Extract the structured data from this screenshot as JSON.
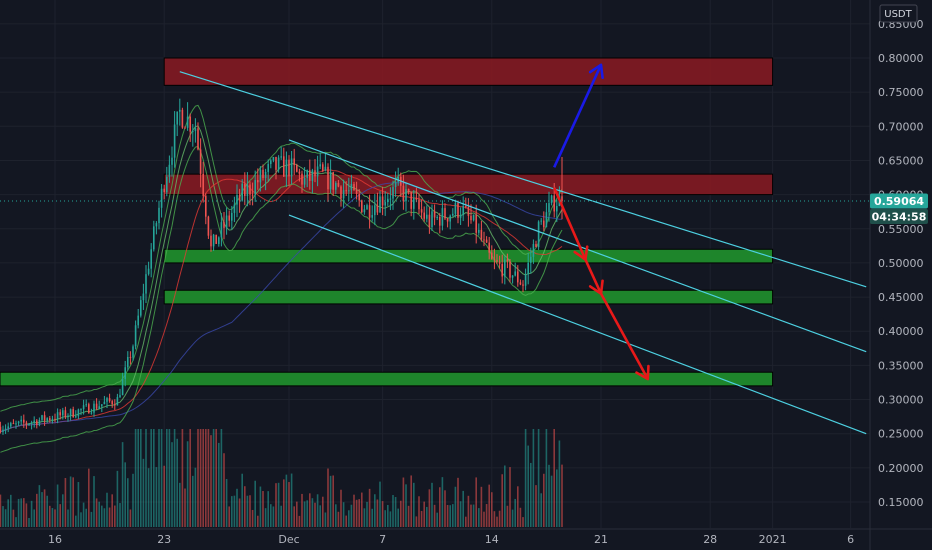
{
  "currency_label": "USDT",
  "colors": {
    "background": "#131722",
    "grid": "#1e222d",
    "up_candle": "#26a69a",
    "down_candle": "#ef5350",
    "channel": "#4dd0e1",
    "resistance_zone": "#8b1a22",
    "support_zone": "#1f8b2c",
    "bullish_arrow": "#1a1ae6",
    "bearish_arrow": "#e81919",
    "price_tag": "#26a69a"
  },
  "current_price": {
    "value": "0.59064",
    "countdown": "04:34:58"
  },
  "chart_data": {
    "type": "candlestick",
    "title": "",
    "xlabel": "",
    "ylabel": "",
    "ylim": [
      0.1,
      0.85
    ],
    "y_ticks": [
      "0.15000",
      "0.20000",
      "0.25000",
      "0.30000",
      "0.35000",
      "0.40000",
      "0.45000",
      "0.50000",
      "0.55000",
      "0.60000",
      "0.65000",
      "0.70000",
      "0.75000",
      "0.80000",
      "0.85000"
    ],
    "x_tick_labels": [
      "16",
      "23",
      "Dec",
      "7",
      "14",
      "21",
      "28",
      "2021",
      "6"
    ],
    "candle_interval": "4h",
    "key_price_path": [
      {
        "date": "2020-11-13",
        "close": 0.26
      },
      {
        "date": "2020-11-17",
        "close": 0.28
      },
      {
        "date": "2020-11-20",
        "close": 0.3
      },
      {
        "date": "2020-11-21",
        "close": 0.38
      },
      {
        "date": "2020-11-22",
        "close": 0.5
      },
      {
        "date": "2020-11-23",
        "close": 0.62
      },
      {
        "date": "2020-11-24",
        "close": 0.72
      },
      {
        "date": "2020-11-25",
        "close": 0.7
      },
      {
        "date": "2020-11-26",
        "close": 0.52
      },
      {
        "date": "2020-11-27",
        "close": 0.56
      },
      {
        "date": "2020-11-28",
        "close": 0.6
      },
      {
        "date": "2020-11-30",
        "close": 0.64
      },
      {
        "date": "2020-12-01",
        "close": 0.64
      },
      {
        "date": "2020-12-02",
        "close": 0.62
      },
      {
        "date": "2020-12-03",
        "close": 0.63
      },
      {
        "date": "2020-12-05",
        "close": 0.6
      },
      {
        "date": "2020-12-06",
        "close": 0.58
      },
      {
        "date": "2020-12-08",
        "close": 0.61
      },
      {
        "date": "2020-12-10",
        "close": 0.56
      },
      {
        "date": "2020-12-12",
        "close": 0.58
      },
      {
        "date": "2020-12-13",
        "close": 0.55
      },
      {
        "date": "2020-12-14",
        "close": 0.5
      },
      {
        "date": "2020-12-15",
        "close": 0.49
      },
      {
        "date": "2020-12-16",
        "close": 0.47
      },
      {
        "date": "2020-12-17",
        "close": 0.55
      },
      {
        "date": "2020-12-18",
        "close": 0.59064
      }
    ],
    "resistance_zones": [
      {
        "low": 0.76,
        "high": 0.8,
        "from": "2020-11-23",
        "to": "2021-01-01"
      },
      {
        "low": 0.6,
        "high": 0.63,
        "from": "2020-11-23",
        "to": "2021-01-01"
      }
    ],
    "support_zones": [
      {
        "low": 0.5,
        "high": 0.52,
        "from": "2020-11-23",
        "to": "2021-01-01"
      },
      {
        "low": 0.44,
        "high": 0.46,
        "from": "2020-11-23",
        "to": "2021-01-01"
      },
      {
        "low": 0.32,
        "high": 0.34,
        "from": "2020-11-09",
        "to": "2021-01-01"
      }
    ],
    "channel_lines": [
      {
        "from": {
          "date": "2020-11-24",
          "price": 0.78
        },
        "to": {
          "date": "2021-01-07",
          "price": 0.465
        }
      },
      {
        "from": {
          "date": "2020-12-01",
          "price": 0.68
        },
        "to": {
          "date": "2021-01-07",
          "price": 0.37
        }
      },
      {
        "from": {
          "date": "2020-12-01",
          "price": 0.57
        },
        "to": {
          "date": "2021-01-07",
          "price": 0.25
        }
      }
    ],
    "projections": [
      {
        "direction": "up",
        "from": {
          "date": "2020-12-18",
          "price": 0.64
        },
        "to": {
          "date": "2020-12-21",
          "price": 0.79
        }
      },
      {
        "direction": "down",
        "path": [
          {
            "date": "2020-12-18",
            "price": 0.61
          },
          {
            "date": "2020-12-20",
            "price": 0.505
          },
          {
            "date": "2020-12-21",
            "price": 0.455
          },
          {
            "date": "2020-12-24",
            "price": 0.33
          }
        ]
      }
    ]
  }
}
